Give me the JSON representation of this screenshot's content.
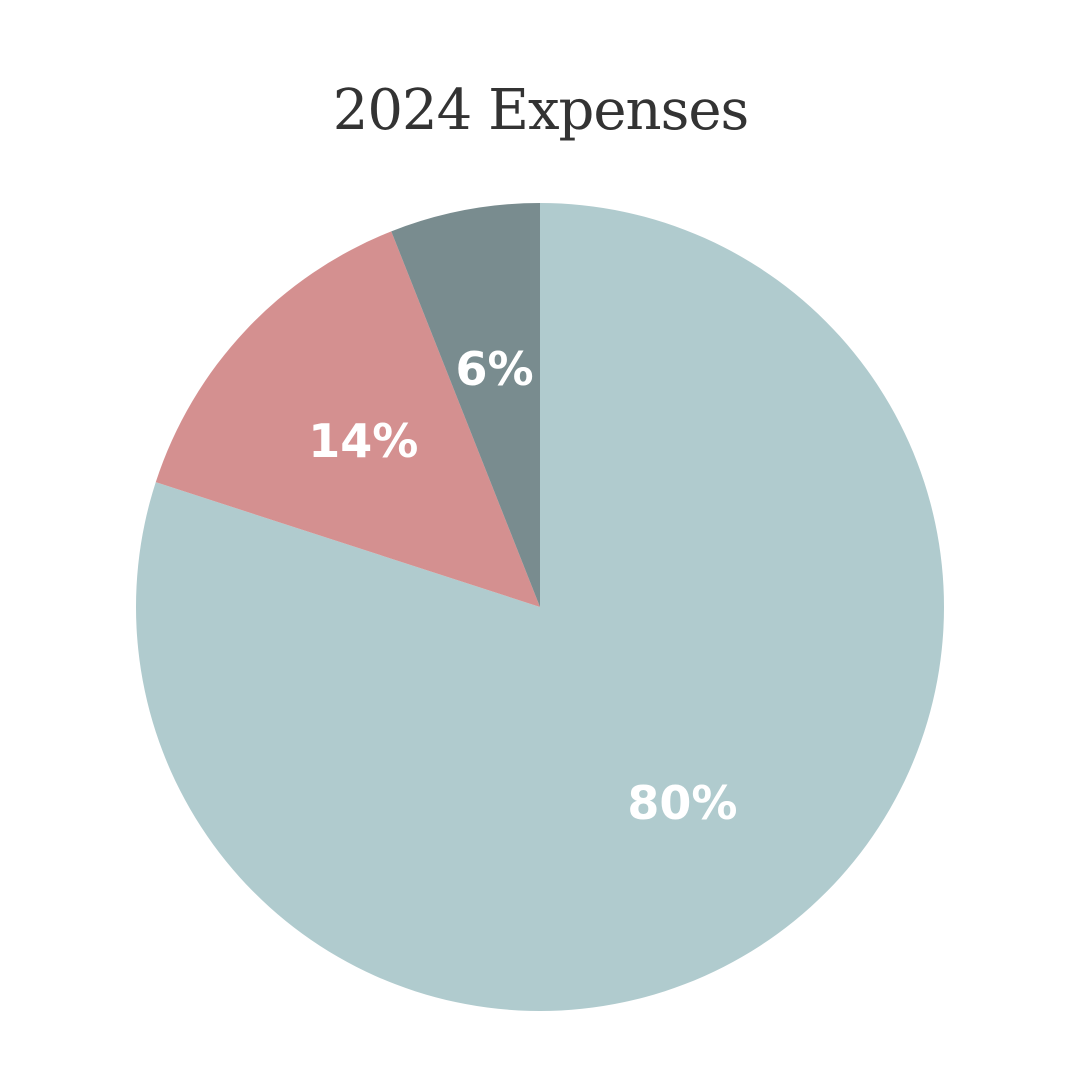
{
  "chart_data": {
    "type": "pie",
    "title": "2024 Expenses",
    "legend": "none",
    "slices": [
      {
        "label": "80%",
        "value": 80,
        "color": "#b0cbce"
      },
      {
        "label": "14%",
        "value": 14,
        "color": "#d49090"
      },
      {
        "label": "6%",
        "value": 6,
        "color": "#798c8f"
      }
    ]
  }
}
